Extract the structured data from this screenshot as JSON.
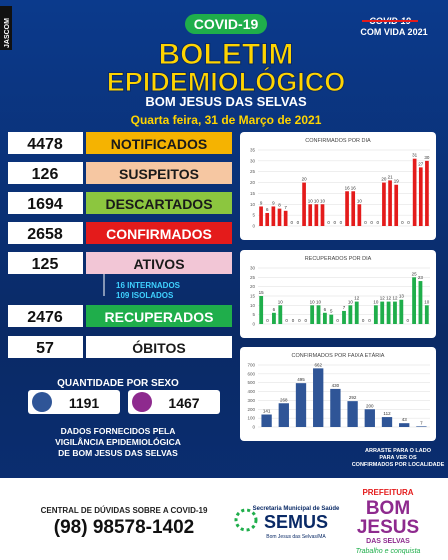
{
  "header": {
    "badge": "COVID-19",
    "title_1": "BOLETIM",
    "title_2": "EPIDEMIOLÓGICO",
    "subtitle": "BOM JESUS DAS SELVAS",
    "date": "Quarta feira, 31 de Março de 2021",
    "tag_1": "COVID-19",
    "tag_2": "COM VIDA 2021",
    "side": "JASCOM"
  },
  "stats": [
    {
      "value": "4478",
      "label": "NOTIFICADOS",
      "color": "#f5b301",
      "text": "#1a1a1a"
    },
    {
      "value": "126",
      "label": "SUSPEITOS",
      "color": "#f6c7a2",
      "text": "#1a1a1a"
    },
    {
      "value": "1694",
      "label": "DESCARTADOS",
      "color": "#8cc63f",
      "text": "#1a1a1a"
    },
    {
      "value": "2658",
      "label": "CONFIRMADOS",
      "color": "#e41b1b",
      "text": "#ffffff"
    },
    {
      "value": "125",
      "label": "ATIVOS",
      "color": "#f2c6d6",
      "text": "#1a1a1a"
    },
    {
      "value": "2476",
      "label": "RECUPERADOS",
      "color": "#1fae4b",
      "text": "#ffffff"
    },
    {
      "value": "57",
      "label": "ÓBITOS",
      "color": "#ffffff",
      "text": "#1a1a1a"
    }
  ],
  "active_detail": [
    "16 INTERNADOS",
    "109 ISOLADOS"
  ],
  "sex": {
    "title": "QUANTIDADE POR SEXO",
    "male": "1191",
    "female": "1467"
  },
  "source": [
    "DADOS FORNECIDOS PELA",
    "VIGILÂNCIA EPIDEMIOLÓGICA",
    "DE BOM JESUS DAS SELVAS"
  ],
  "swipe": [
    "ARRASTE PARA O LADO",
    "PARA VER OS",
    "CONFIRMADOS POR LOCALIDADE"
  ],
  "footer": {
    "help": "CENTRAL DE DÚVIDAS SOBRE A COVID-19",
    "phone": "(98) 98578-1402",
    "semus_1": "Secretaria Municipal de Saúde",
    "semus_2": "SEMUS",
    "semus_3": "Bom Jesus das Selvas/MA",
    "pref_1": "PREFEITURA",
    "pref_2": "BOM",
    "pref_3": "JESUS",
    "pref_4": "DAS SELVAS",
    "pref_5": "Trabalho e conquista"
  },
  "chart_data": [
    {
      "type": "bar",
      "title": "CONFIRMADOS POR DIA",
      "color": "#e41b1b",
      "grid": true,
      "values": [
        9,
        6,
        9,
        8,
        7,
        0,
        0,
        20,
        10,
        10,
        10,
        0,
        0,
        0,
        16,
        16,
        10,
        0,
        0,
        0,
        20,
        21,
        19,
        0,
        0,
        31,
        27,
        30
      ],
      "ylim": [
        0,
        35
      ],
      "yticks": [
        0,
        5,
        10,
        15,
        20,
        25,
        30,
        35
      ]
    },
    {
      "type": "bar",
      "title": "RECUPERADOS POR DIA",
      "color": "#1fae4b",
      "grid": true,
      "values": [
        15,
        0,
        6,
        10,
        0,
        0,
        0,
        0,
        10,
        10,
        6,
        5,
        0,
        7,
        10,
        12,
        0,
        0,
        10,
        12,
        12,
        12,
        13,
        0,
        25,
        23,
        10
      ],
      "ylim": [
        0,
        30
      ],
      "yticks": [
        0,
        5,
        10,
        15,
        20,
        25,
        30
      ]
    },
    {
      "type": "bar",
      "title": "CONFIRMADOS POR FAIXA ETÁRIA",
      "color": "#2f5597",
      "grid": true,
      "values": [
        141,
        268,
        495,
        662,
        430,
        292,
        200,
        112,
        43,
        7
      ],
      "ylim": [
        0,
        700
      ],
      "yticks": [
        0,
        100,
        200,
        300,
        400,
        500,
        600,
        700
      ]
    }
  ]
}
